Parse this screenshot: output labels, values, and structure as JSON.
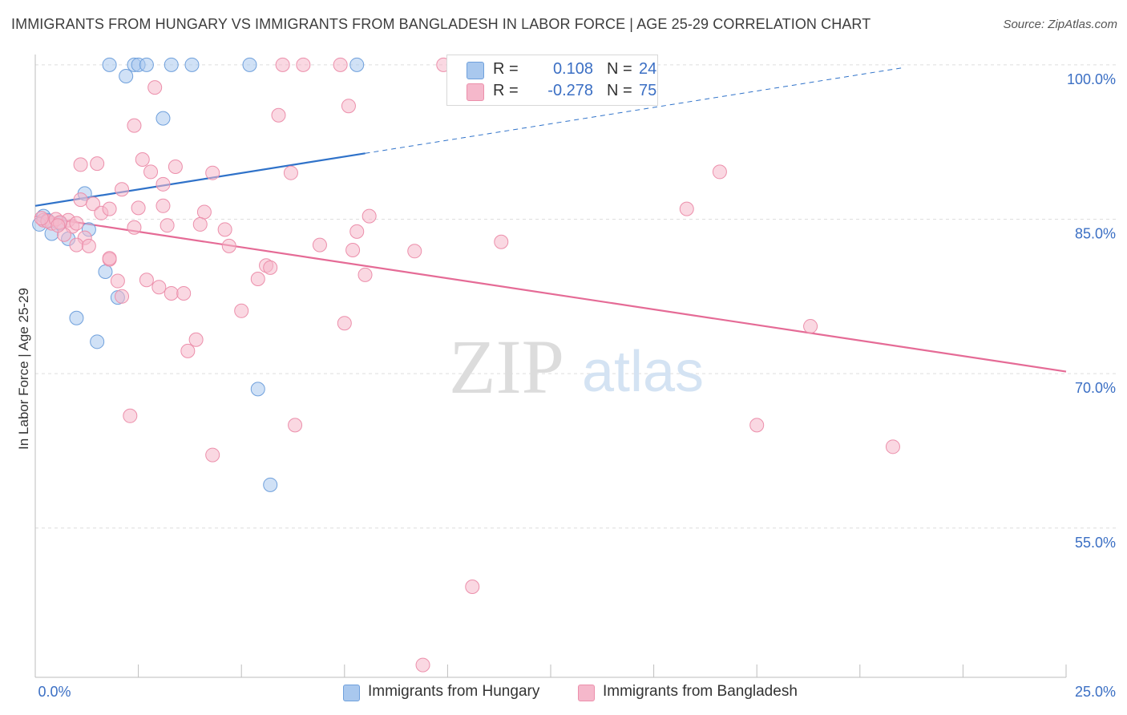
{
  "title": "IMMIGRANTS FROM HUNGARY VS IMMIGRANTS FROM BANGLADESH IN LABOR FORCE | AGE 25-29 CORRELATION CHART",
  "source": "Source: ZipAtlas.com",
  "watermark": {
    "zip": "ZIP",
    "atlas": "atlas"
  },
  "legend": {
    "r_label": "R =",
    "n_label": "N =",
    "rows": [
      {
        "r": "0.108",
        "n": "24",
        "color": "#a9c8ee"
      },
      {
        "r": "-0.278",
        "n": "75",
        "color": "#f5b8cb"
      }
    ]
  },
  "bottom_legend": [
    {
      "label": "Immigrants from Hungary",
      "color": "#a9c8ee"
    },
    {
      "label": "Immigrants from Bangladesh",
      "color": "#f5b8cb"
    }
  ],
  "chart_data": {
    "type": "scatter",
    "title": "IMMIGRANTS FROM HUNGARY VS IMMIGRANTS FROM BANGLADESH IN LABOR FORCE | AGE 25-29 CORRELATION CHART",
    "xlabel": "",
    "ylabel": "In Labor Force | Age 25-29",
    "xlim": [
      0,
      25
    ],
    "ylim": [
      40.5,
      101
    ],
    "x_tick_labels": [
      "0.0%",
      "25.0%"
    ],
    "y_ticks": [
      55,
      70,
      85,
      100
    ],
    "y_tick_labels": [
      "55.0%",
      "70.0%",
      "85.0%",
      "100.0%"
    ],
    "grid": true,
    "legend_position": "top-center",
    "series": [
      {
        "name": "Immigrants from Hungary",
        "color": "#a9c8ee",
        "stroke": "#6fa0dc",
        "trend_color": "#2f72c9",
        "trend": {
          "x0": 0,
          "y0": 86.3,
          "x1": 8.0,
          "y1": 91.4,
          "x_dash_end": 21.0
        },
        "points": [
          {
            "x": 1.8,
            "y": 100
          },
          {
            "x": 2.4,
            "y": 100
          },
          {
            "x": 2.5,
            "y": 100
          },
          {
            "x": 2.7,
            "y": 100
          },
          {
            "x": 3.3,
            "y": 100
          },
          {
            "x": 3.8,
            "y": 100
          },
          {
            "x": 5.2,
            "y": 100
          },
          {
            "x": 7.8,
            "y": 100
          },
          {
            "x": 2.2,
            "y": 98.9
          },
          {
            "x": 3.1,
            "y": 94.8
          },
          {
            "x": 1.2,
            "y": 87.5
          },
          {
            "x": 0.2,
            "y": 85.3
          },
          {
            "x": 0.3,
            "y": 84.9
          },
          {
            "x": 0.6,
            "y": 84.6
          },
          {
            "x": 0.4,
            "y": 83.6
          },
          {
            "x": 1.3,
            "y": 84.0
          },
          {
            "x": 0.8,
            "y": 83.1
          },
          {
            "x": 1.7,
            "y": 79.9
          },
          {
            "x": 2.0,
            "y": 77.4
          },
          {
            "x": 1.0,
            "y": 75.4
          },
          {
            "x": 1.5,
            "y": 73.1
          },
          {
            "x": 5.4,
            "y": 68.5
          },
          {
            "x": 5.7,
            "y": 59.2
          },
          {
            "x": 0.1,
            "y": 84.5
          }
        ]
      },
      {
        "name": "Immigrants from Bangladesh",
        "color": "#f5b8cb",
        "stroke": "#ec8fab",
        "trend_color": "#e56b96",
        "trend": {
          "x0": 0,
          "y0": 85.3,
          "x1": 25,
          "y1": 70.2
        },
        "points": [
          {
            "x": 6.0,
            "y": 100
          },
          {
            "x": 6.5,
            "y": 100
          },
          {
            "x": 7.4,
            "y": 100
          },
          {
            "x": 9.9,
            "y": 100
          },
          {
            "x": 2.9,
            "y": 97.8
          },
          {
            "x": 7.6,
            "y": 96.0
          },
          {
            "x": 5.9,
            "y": 95.1
          },
          {
            "x": 2.4,
            "y": 94.1
          },
          {
            "x": 2.6,
            "y": 90.8
          },
          {
            "x": 1.1,
            "y": 90.3
          },
          {
            "x": 1.5,
            "y": 90.4
          },
          {
            "x": 3.4,
            "y": 90.1
          },
          {
            "x": 2.8,
            "y": 89.6
          },
          {
            "x": 4.3,
            "y": 89.5
          },
          {
            "x": 6.2,
            "y": 89.5
          },
          {
            "x": 16.6,
            "y": 89.6
          },
          {
            "x": 3.1,
            "y": 88.4
          },
          {
            "x": 2.1,
            "y": 87.9
          },
          {
            "x": 1.1,
            "y": 86.9
          },
          {
            "x": 1.4,
            "y": 86.5
          },
          {
            "x": 2.5,
            "y": 86.1
          },
          {
            "x": 1.6,
            "y": 85.6
          },
          {
            "x": 1.8,
            "y": 86.0
          },
          {
            "x": 3.1,
            "y": 86.3
          },
          {
            "x": 4.1,
            "y": 85.7
          },
          {
            "x": 8.1,
            "y": 85.3
          },
          {
            "x": 15.8,
            "y": 86.0
          },
          {
            "x": 0.2,
            "y": 84.9
          },
          {
            "x": 0.4,
            "y": 84.6
          },
          {
            "x": 0.8,
            "y": 84.9
          },
          {
            "x": 0.9,
            "y": 84.3
          },
          {
            "x": 2.4,
            "y": 84.2
          },
          {
            "x": 3.2,
            "y": 84.4
          },
          {
            "x": 4.0,
            "y": 84.5
          },
          {
            "x": 4.6,
            "y": 84.0
          },
          {
            "x": 7.8,
            "y": 83.8
          },
          {
            "x": 0.7,
            "y": 83.5
          },
          {
            "x": 1.2,
            "y": 83.2
          },
          {
            "x": 1.0,
            "y": 82.5
          },
          {
            "x": 1.3,
            "y": 82.4
          },
          {
            "x": 4.7,
            "y": 82.4
          },
          {
            "x": 6.9,
            "y": 82.5
          },
          {
            "x": 7.7,
            "y": 82.0
          },
          {
            "x": 9.2,
            "y": 81.9
          },
          {
            "x": 11.3,
            "y": 82.8
          },
          {
            "x": 1.8,
            "y": 81.1
          },
          {
            "x": 1.8,
            "y": 81.2
          },
          {
            "x": 5.6,
            "y": 80.5
          },
          {
            "x": 5.7,
            "y": 80.3
          },
          {
            "x": 8.0,
            "y": 79.6
          },
          {
            "x": 2.7,
            "y": 79.1
          },
          {
            "x": 2.0,
            "y": 79.0
          },
          {
            "x": 5.4,
            "y": 79.2
          },
          {
            "x": 3.0,
            "y": 78.4
          },
          {
            "x": 3.3,
            "y": 77.8
          },
          {
            "x": 3.6,
            "y": 77.8
          },
          {
            "x": 2.1,
            "y": 77.5
          },
          {
            "x": 5.0,
            "y": 76.1
          },
          {
            "x": 7.5,
            "y": 74.9
          },
          {
            "x": 18.8,
            "y": 74.6
          },
          {
            "x": 3.9,
            "y": 73.3
          },
          {
            "x": 3.7,
            "y": 72.2
          },
          {
            "x": 2.3,
            "y": 65.9
          },
          {
            "x": 6.3,
            "y": 65.0
          },
          {
            "x": 17.5,
            "y": 65.0
          },
          {
            "x": 20.8,
            "y": 62.9
          },
          {
            "x": 4.3,
            "y": 62.1
          },
          {
            "x": 10.6,
            "y": 49.3
          },
          {
            "x": 9.4,
            "y": 41.7
          },
          {
            "x": 0.3,
            "y": 84.8
          },
          {
            "x": 0.5,
            "y": 85.0
          },
          {
            "x": 0.6,
            "y": 84.7
          },
          {
            "x": 0.15,
            "y": 85.1
          },
          {
            "x": 1.0,
            "y": 84.6
          },
          {
            "x": 0.55,
            "y": 84.4
          }
        ]
      }
    ]
  }
}
